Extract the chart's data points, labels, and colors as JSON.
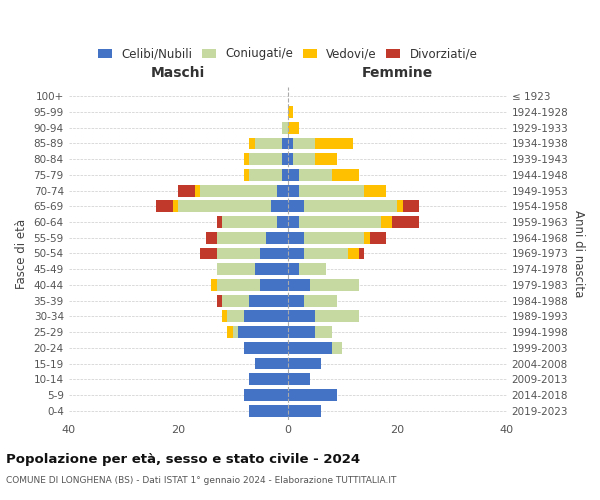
{
  "age_groups": [
    "0-4",
    "5-9",
    "10-14",
    "15-19",
    "20-24",
    "25-29",
    "30-34",
    "35-39",
    "40-44",
    "45-49",
    "50-54",
    "55-59",
    "60-64",
    "65-69",
    "70-74",
    "75-79",
    "80-84",
    "85-89",
    "90-94",
    "95-99",
    "100+"
  ],
  "birth_years": [
    "2019-2023",
    "2014-2018",
    "2009-2013",
    "2004-2008",
    "1999-2003",
    "1994-1998",
    "1989-1993",
    "1984-1988",
    "1979-1983",
    "1974-1978",
    "1969-1973",
    "1964-1968",
    "1959-1963",
    "1954-1958",
    "1949-1953",
    "1944-1948",
    "1939-1943",
    "1934-1938",
    "1929-1933",
    "1924-1928",
    "≤ 1923"
  ],
  "maschi": {
    "celibi": [
      7,
      8,
      7,
      6,
      8,
      9,
      8,
      7,
      5,
      6,
      5,
      4,
      2,
      3,
      2,
      1,
      1,
      1,
      0,
      0,
      0
    ],
    "coniugati": [
      0,
      0,
      0,
      0,
      0,
      1,
      3,
      5,
      8,
      7,
      8,
      9,
      10,
      17,
      14,
      6,
      6,
      5,
      1,
      0,
      0
    ],
    "vedovi": [
      0,
      0,
      0,
      0,
      0,
      1,
      1,
      0,
      1,
      0,
      0,
      0,
      0,
      1,
      1,
      1,
      1,
      1,
      0,
      0,
      0
    ],
    "divorziati": [
      0,
      0,
      0,
      0,
      0,
      0,
      0,
      1,
      0,
      0,
      3,
      2,
      1,
      3,
      3,
      0,
      0,
      0,
      0,
      0,
      0
    ]
  },
  "femmine": {
    "nubili": [
      6,
      9,
      4,
      6,
      8,
      5,
      5,
      3,
      4,
      2,
      3,
      3,
      2,
      3,
      2,
      2,
      1,
      1,
      0,
      0,
      0
    ],
    "coniugate": [
      0,
      0,
      0,
      0,
      2,
      3,
      8,
      6,
      9,
      5,
      8,
      11,
      15,
      17,
      12,
      6,
      4,
      4,
      0,
      0,
      0
    ],
    "vedove": [
      0,
      0,
      0,
      0,
      0,
      0,
      0,
      0,
      0,
      0,
      2,
      1,
      2,
      1,
      4,
      5,
      4,
      7,
      2,
      1,
      0
    ],
    "divorziate": [
      0,
      0,
      0,
      0,
      0,
      0,
      0,
      0,
      0,
      0,
      1,
      3,
      5,
      3,
      0,
      0,
      0,
      0,
      0,
      0,
      0
    ]
  },
  "colors": {
    "celibi": "#4472c4",
    "coniugati": "#c5d9a0",
    "vedovi": "#ffc000",
    "divorziati": "#c0392b"
  },
  "xlim": [
    -40,
    40
  ],
  "xlabel_maschi": "Maschi",
  "xlabel_femmine": "Femmine",
  "ylabel": "Fasce di età",
  "ylabel_right": "Anni di nascita",
  "title": "Popolazione per età, sesso e stato civile - 2024",
  "subtitle": "COMUNE DI LONGHENA (BS) - Dati ISTAT 1° gennaio 2024 - Elaborazione TUTTITALIA.IT",
  "legend_labels": [
    "Celibi/Nubili",
    "Coniugati/e",
    "Vedovi/e",
    "Divorziati/e"
  ],
  "background_color": "#ffffff",
  "grid_color": "#cccccc"
}
